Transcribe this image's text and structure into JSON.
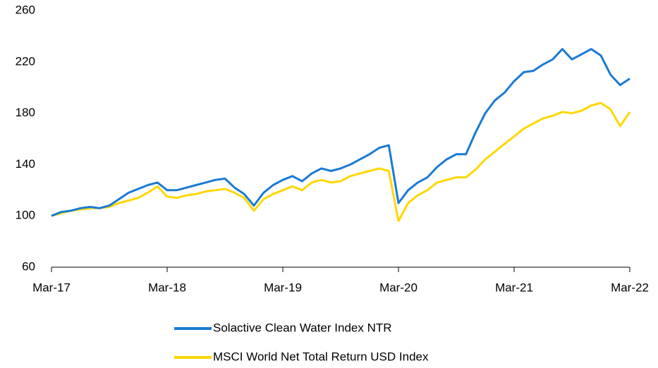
{
  "chart_data": {
    "type": "line",
    "categories": [
      "Mar-17",
      null,
      null,
      null,
      null,
      null,
      null,
      null,
      null,
      null,
      null,
      null,
      "Mar-18",
      null,
      null,
      null,
      null,
      null,
      null,
      null,
      null,
      null,
      null,
      null,
      "Mar-19",
      null,
      null,
      null,
      null,
      null,
      null,
      null,
      null,
      null,
      null,
      null,
      "Mar-20",
      null,
      null,
      null,
      null,
      null,
      null,
      null,
      null,
      null,
      null,
      null,
      "Mar-21",
      null,
      null,
      null,
      null,
      null,
      null,
      null,
      null,
      null,
      null,
      null,
      "Mar-22"
    ],
    "series": [
      {
        "name": "Solactive Clean Water Index NTR",
        "color": "#1a7ad4",
        "values": [
          100,
          103,
          104,
          106,
          107,
          106,
          108,
          113,
          118,
          121,
          124,
          126,
          120,
          120,
          122,
          124,
          126,
          128,
          129,
          122,
          117,
          108,
          118,
          124,
          128,
          131,
          127,
          133,
          137,
          135,
          137,
          140,
          144,
          148,
          153,
          155,
          110,
          120,
          126,
          130,
          138,
          144,
          148,
          148,
          165,
          180,
          190,
          196,
          205,
          212,
          213,
          218,
          222,
          230,
          222,
          226,
          230,
          225,
          210,
          202,
          207
        ]
      },
      {
        "name": "MSCI World Net Total Return USD Index",
        "color": "#ffd700",
        "values": [
          100,
          102,
          104,
          105,
          106,
          106,
          107,
          110,
          112,
          114,
          118,
          123,
          115,
          114,
          116,
          117,
          119,
          120,
          121,
          118,
          114,
          104,
          113,
          117,
          120,
          123,
          120,
          126,
          128,
          126,
          127,
          131,
          133,
          135,
          137,
          135,
          96,
          110,
          116,
          120,
          126,
          128,
          130,
          130,
          136,
          144,
          150,
          156,
          162,
          168,
          172,
          176,
          178,
          181,
          180,
          182,
          186,
          188,
          183,
          170,
          181
        ]
      }
    ],
    "ylim": [
      60,
      260
    ],
    "yticks": [
      60,
      100,
      140,
      180,
      220,
      260
    ],
    "grid": false
  }
}
